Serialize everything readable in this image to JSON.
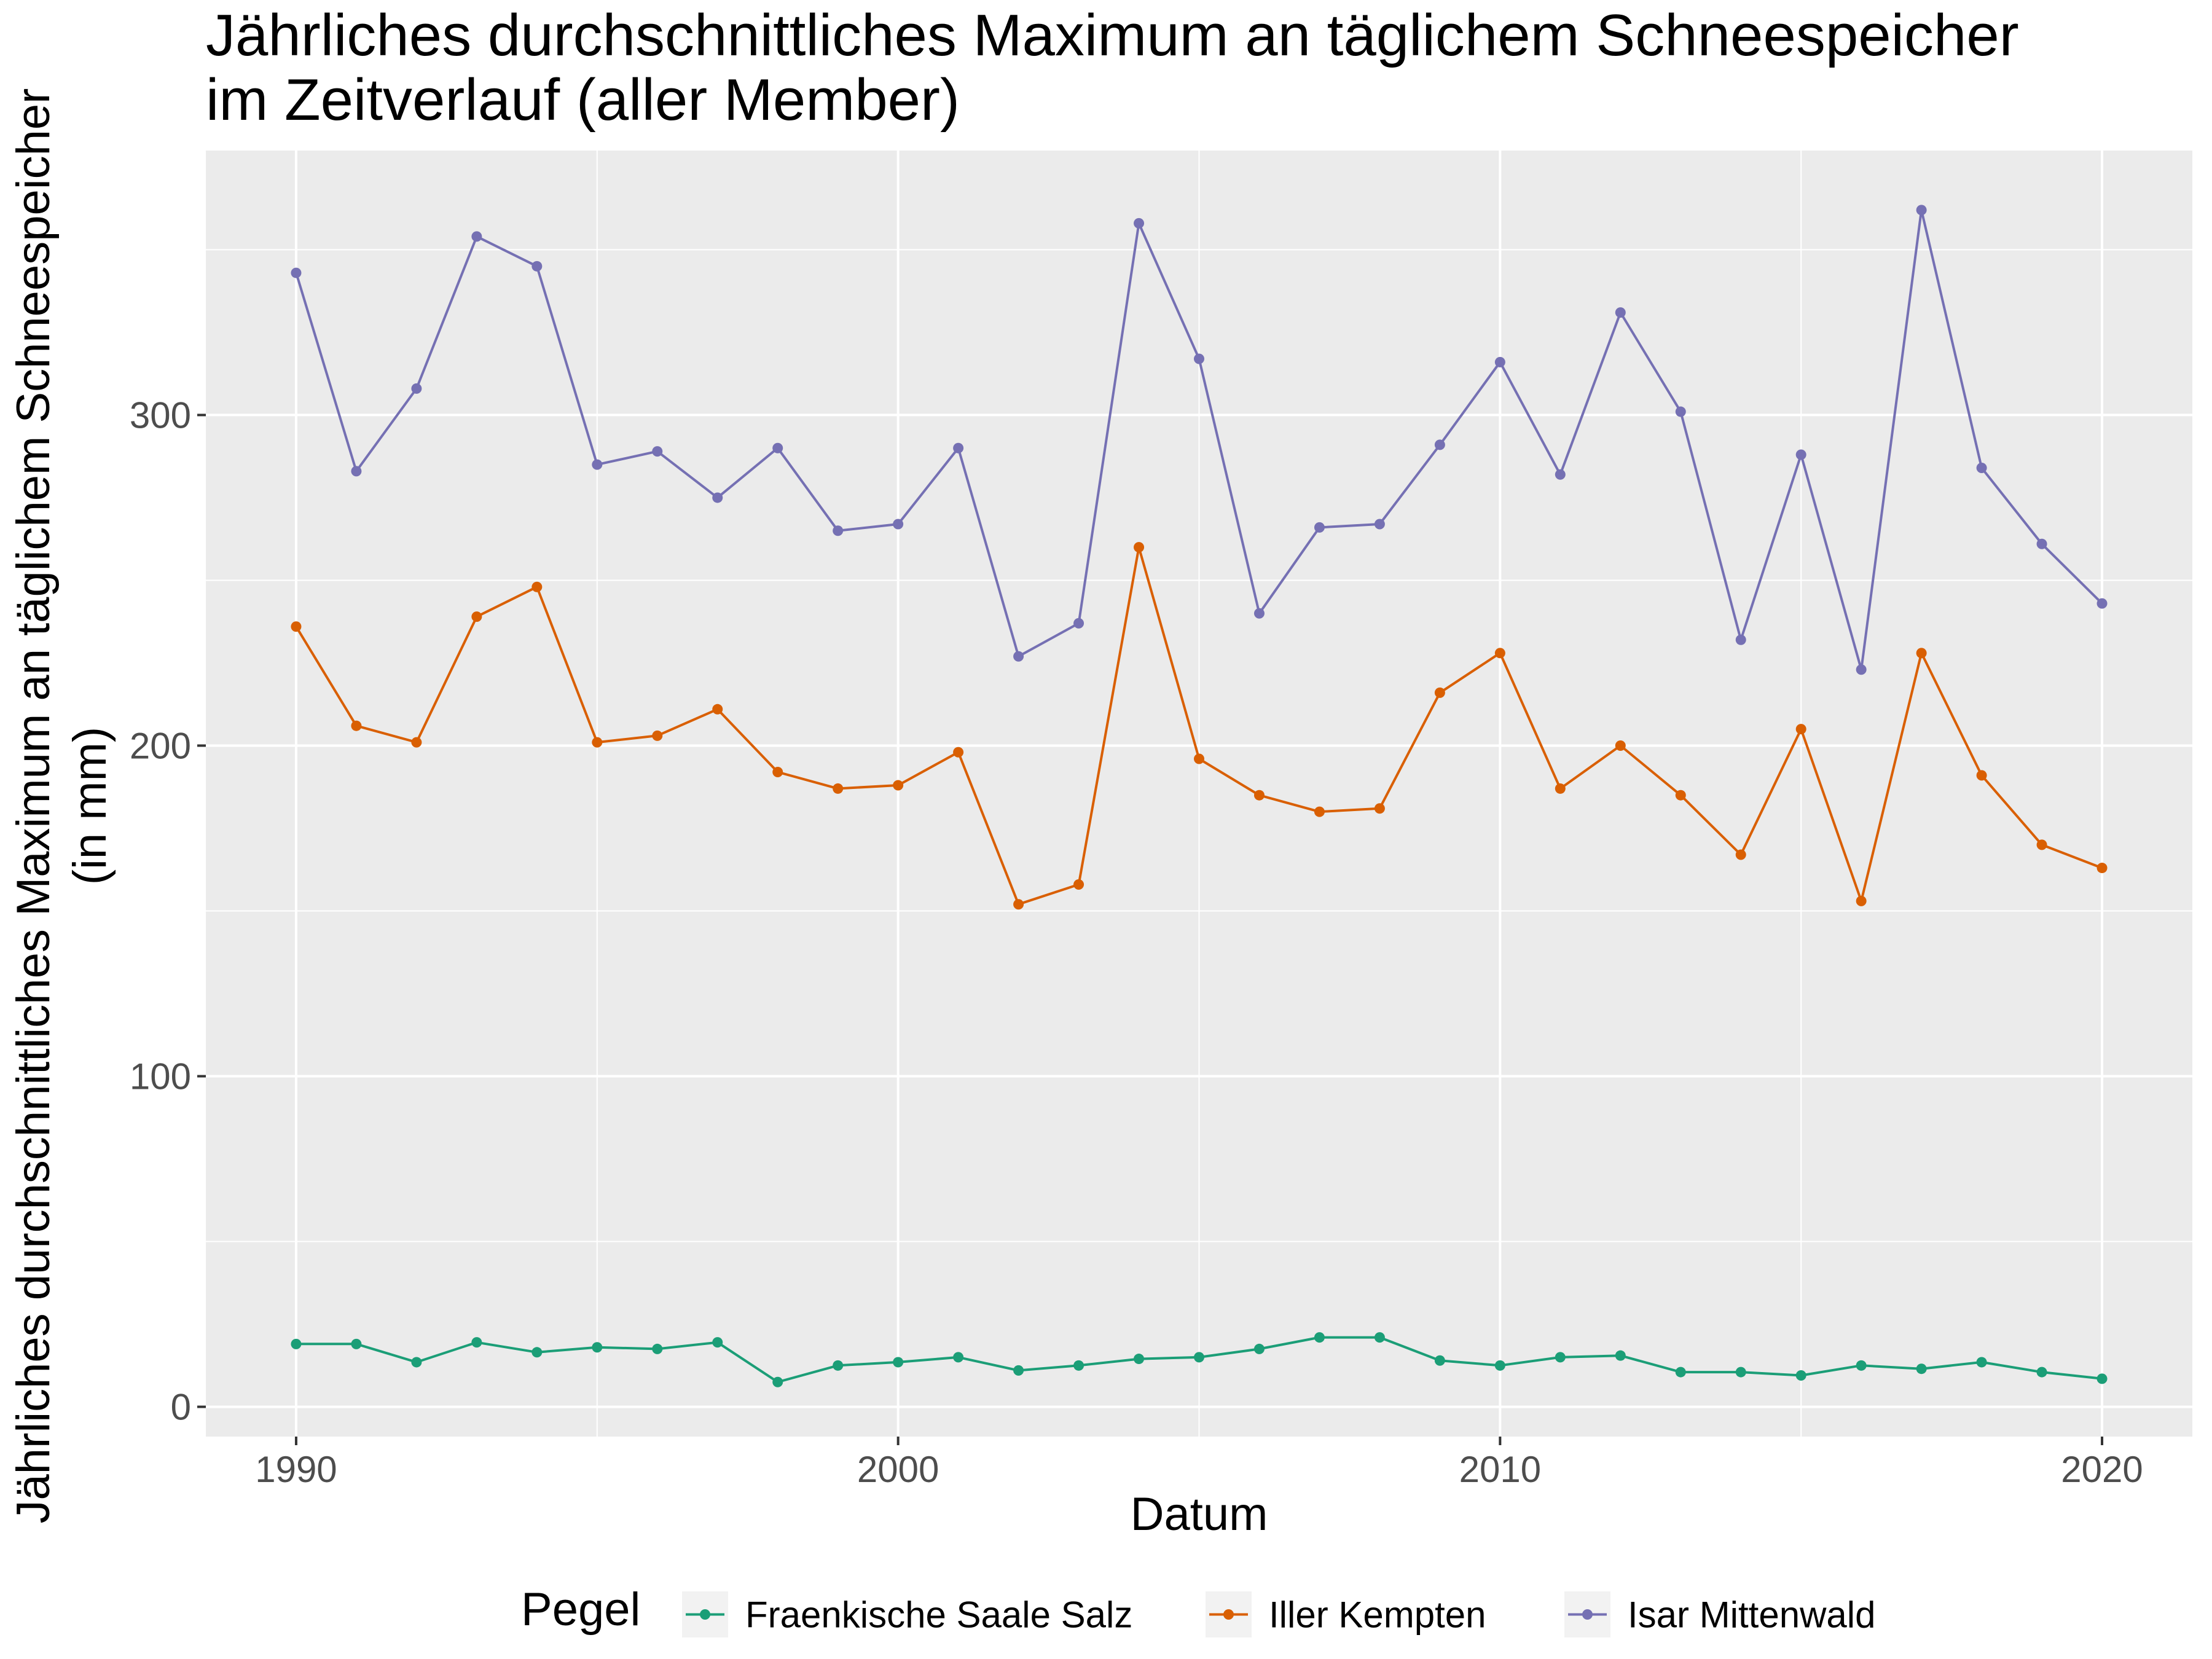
{
  "chart_data": {
    "type": "line",
    "title_lines": [
      "Jährliches durchschnittliches Maximum an täglichem Schneespeicher",
      "im Zeitverlauf (aller Member)"
    ],
    "xlabel": "Datum",
    "ylabel_lines": [
      "Jährliches durchschnittliches Maximum an täglichem Schneespeicher",
      "(in mm)"
    ],
    "xlim": [
      1988.5,
      2021.5
    ],
    "ylim": [
      -9,
      380
    ],
    "x_ticks": [
      1990,
      2000,
      2010,
      2020
    ],
    "y_ticks": [
      0,
      100,
      200,
      300
    ],
    "x_tick_labels": [
      "1990",
      "2000",
      "2010",
      "2020"
    ],
    "y_tick_labels": [
      "0",
      "100",
      "200",
      "300"
    ],
    "grid": true,
    "background": "#ebebeb",
    "legend": {
      "title": "Pegel",
      "position": "bottom"
    },
    "x": [
      1990,
      1991,
      1992,
      1993,
      1994,
      1995,
      1996,
      1997,
      1998,
      1999,
      2000,
      2001,
      2002,
      2003,
      2004,
      2005,
      2006,
      2007,
      2008,
      2009,
      2010,
      2011,
      2012,
      2013,
      2014,
      2015,
      2016,
      2017,
      2018,
      2019,
      2020
    ],
    "series": [
      {
        "name": "Fraenkische Saale Salz",
        "color": "#1b9e77",
        "values": [
          19,
          19,
          13.5,
          19.5,
          16.5,
          18,
          17.5,
          19.5,
          7.5,
          12.5,
          13.5,
          15,
          11,
          12.5,
          14.5,
          15,
          17.5,
          21,
          21,
          14,
          12.5,
          15,
          15.5,
          10.5,
          10.5,
          9.5,
          12.5,
          11.5,
          13.5,
          10.5,
          8.5
        ]
      },
      {
        "name": "Iller Kempten",
        "color": "#d95f02",
        "values": [
          236,
          206,
          201,
          239,
          248,
          201,
          203,
          211,
          192,
          187,
          188,
          198,
          152,
          158,
          260,
          196,
          185,
          180,
          181,
          216,
          228,
          187,
          200,
          185,
          167,
          205,
          153,
          228,
          191,
          170,
          163
        ]
      },
      {
        "name": "Isar Mittenwald",
        "color": "#7570b3",
        "values": [
          343,
          283,
          308,
          354,
          345,
          285,
          289,
          275,
          290,
          265,
          267,
          290,
          227,
          237,
          358,
          317,
          240,
          266,
          267,
          291,
          316,
          282,
          331,
          301,
          232,
          288,
          223,
          362,
          284,
          261,
          243
        ]
      }
    ]
  }
}
